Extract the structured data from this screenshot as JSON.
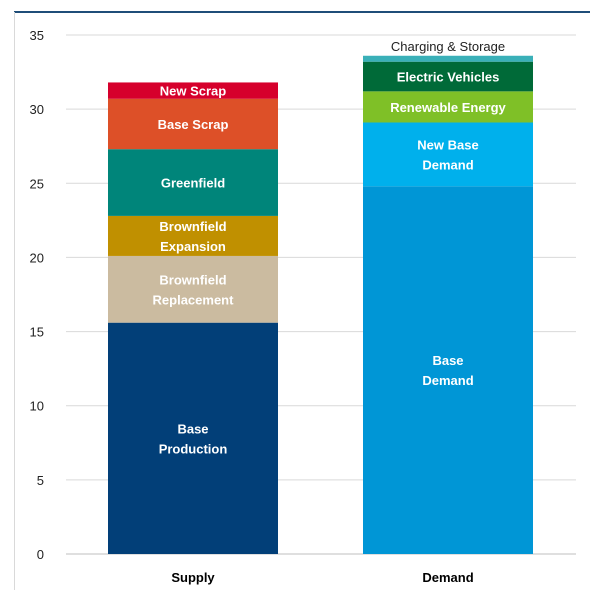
{
  "chart_data": {
    "type": "bar",
    "stacked": true,
    "categories": [
      "Supply",
      "Demand"
    ],
    "ylim": [
      0,
      35
    ],
    "yticks": [
      0,
      5,
      10,
      15,
      20,
      25,
      30,
      35
    ],
    "grid": true,
    "stacks": [
      {
        "category": "Supply",
        "segments": [
          {
            "label": [
              "Base",
              "Production"
            ],
            "value": 15.6,
            "color": "#023f78"
          },
          {
            "label": [
              "Brownfield",
              "Replacement"
            ],
            "value": 4.5,
            "color": "#cbbba0"
          },
          {
            "label": [
              "Brownfield",
              "Expansion"
            ],
            "value": 2.7,
            "color": "#c09000"
          },
          {
            "label": [
              "Greenfield"
            ],
            "value": 4.5,
            "color": "#00857a"
          },
          {
            "label": [
              "Base Scrap"
            ],
            "value": 3.4,
            "color": "#dd5028"
          },
          {
            "label": [
              "New Scrap"
            ],
            "value": 1.1,
            "color": "#d6002c"
          }
        ]
      },
      {
        "category": "Demand",
        "segments": [
          {
            "label": [
              "Base",
              "Demand"
            ],
            "value": 24.8,
            "color": "#0096d6"
          },
          {
            "label": [
              "New Base",
              "Demand"
            ],
            "value": 4.3,
            "color": "#00b0ec"
          },
          {
            "label": [
              "Renewable Energy"
            ],
            "value": 2.1,
            "color": "#7fc027"
          },
          {
            "label": [
              "Electric Vehicles"
            ],
            "value": 2.0,
            "color": "#006a38"
          },
          {
            "label": [
              "Charging & Storage"
            ],
            "value": 0.4,
            "color": "#3ab0b8",
            "label_outside": true
          }
        ]
      }
    ]
  }
}
